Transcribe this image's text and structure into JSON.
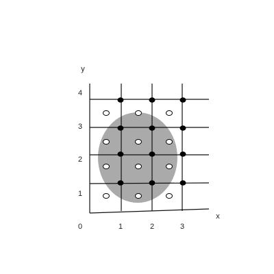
{
  "axes": {
    "x_label": "x",
    "y_label": "y",
    "origin": "0",
    "x_ticks": [
      "1",
      "2",
      "3"
    ],
    "y_ticks": [
      "1",
      "2",
      "3",
      "4"
    ]
  }
}
